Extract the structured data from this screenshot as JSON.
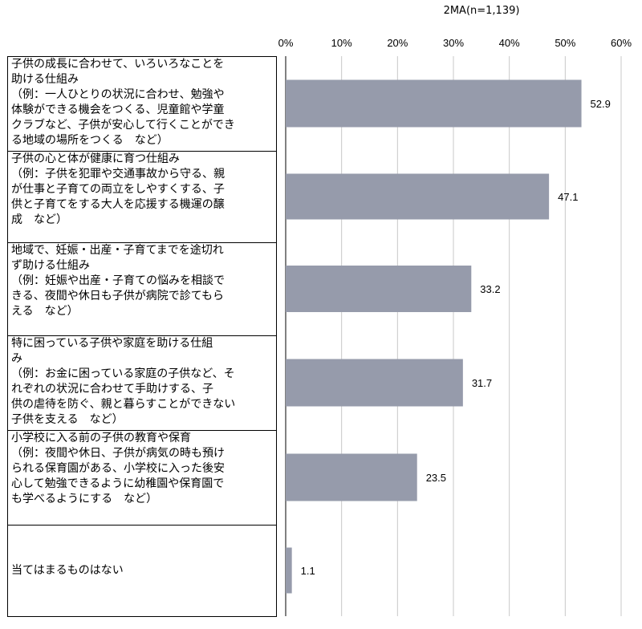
{
  "chart_data": {
    "type": "bar",
    "orientation": "horizontal",
    "note": "2MA(n=1,139)",
    "xlim": [
      0,
      60
    ],
    "ticks": [
      0,
      10,
      20,
      30,
      40,
      50,
      60
    ],
    "tick_labels": [
      "0%",
      "10%",
      "20%",
      "30%",
      "40%",
      "50%",
      "60%"
    ],
    "grid": true,
    "bar_color": "#969bab",
    "categories": [
      "子供の成長に合わせて、いろいろなことを\n助ける仕組み\n（例：一人ひとりの状況に合わせ、勉強や\n体験ができる機会をつくる、児童館や学童\nクラブなど、子供が安心して行くことができ\nる地域の場所をつくる　など）",
      "子供の心と体が健康に育つ仕組み\n（例：子供を犯罪や交通事故から守る、親\nが仕事と子育ての両立をしやすくする、子\n供と子育てをする大人を応援する機運の醸\n成　など）",
      "地域で、妊娠・出産・子育てまでを途切れ\nず助ける仕組み\n（例：妊娠や出産・子育ての悩みを相談で\nきる、夜間や休日も子供が病院で診てもら\nえる　など）",
      "特に困っている子供や家庭を助ける仕組\nみ\n（例：お金に困っている家庭の子供など、そ\nれぞれの状況に合わせて手助けする、子\n供の虐待を防ぐ、親と暮らすことができない\n子供を支える　など）",
      "小学校に入る前の子供の教育や保育\n（例：夜間や休日、子供が病気の時も預け\nられる保育園がある、小学校に入った後安\n心して勉強できるように幼稚園や保育園で\nも学べるようにする　など）",
      "当てはまるものはない"
    ],
    "values": [
      52.9,
      47.1,
      33.2,
      31.7,
      23.5,
      1.1
    ],
    "value_labels": [
      "52.9",
      "47.1",
      "33.2",
      "31.7",
      "23.5",
      "1.1"
    ]
  }
}
